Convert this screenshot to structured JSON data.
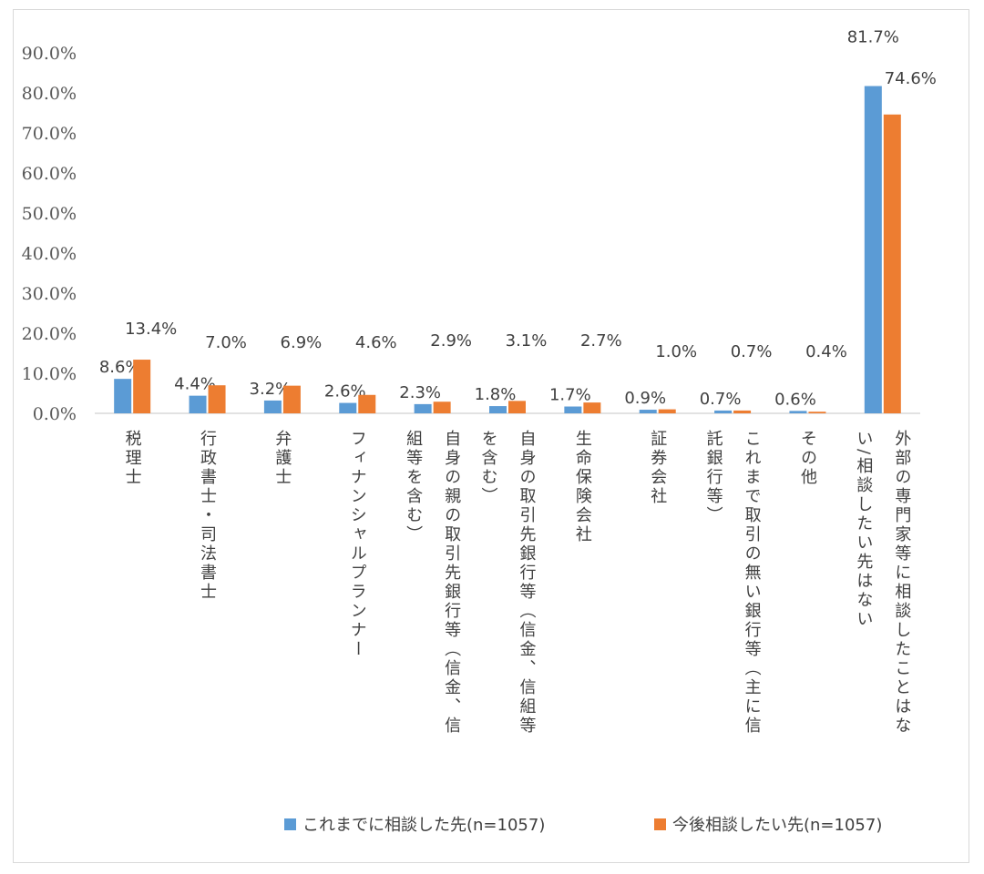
{
  "chart_data": {
    "type": "bar",
    "title": "",
    "xlabel": "",
    "ylabel": "",
    "ylim": [
      0,
      90
    ],
    "y_ticks": [
      "0.0%",
      "10.0%",
      "20.0%",
      "30.0%",
      "40.0%",
      "50.0%",
      "60.0%",
      "70.0%",
      "80.0%",
      "90.0%"
    ],
    "grid": false,
    "legend_position": "bottom",
    "categories": [
      {
        "lines": [
          "税理士"
        ]
      },
      {
        "lines": [
          "行政書士・司法書士"
        ]
      },
      {
        "lines": [
          "弁護士"
        ]
      },
      {
        "lines": [
          "フィナンシャルプランナー"
        ]
      },
      {
        "lines": [
          "自身の親の取引先銀行等（信金、信",
          "組等を含む）"
        ]
      },
      {
        "lines": [
          "自身の取引先銀行等（信金、信組等",
          "を含む）"
        ]
      },
      {
        "lines": [
          "生命保険会社"
        ]
      },
      {
        "lines": [
          "証券会社"
        ]
      },
      {
        "lines": [
          "これまで取引の無い銀行等（主に信",
          "託銀行等）"
        ]
      },
      {
        "lines": [
          "その他"
        ]
      },
      {
        "lines": [
          "外部の専門家等に相談したことはな",
          "い/相談したい先はない"
        ]
      }
    ],
    "series": [
      {
        "name": "これまでに相談した先(n=1057)",
        "color": "#5b9bd5",
        "values": [
          8.6,
          4.4,
          3.2,
          2.6,
          2.3,
          1.8,
          1.7,
          0.9,
          0.7,
          0.6,
          81.7
        ],
        "labels": [
          "8.6%",
          "4.4%",
          "3.2%",
          "2.6%",
          "2.3%",
          "1.8%",
          "1.7%",
          "0.9%",
          "0.7%",
          "0.6%",
          "81.7%"
        ]
      },
      {
        "name": "今後相談したい先(n=1057)",
        "color": "#ed7d31",
        "values": [
          13.4,
          7.0,
          6.9,
          4.6,
          2.9,
          3.1,
          2.7,
          1.0,
          0.7,
          0.4,
          74.6
        ],
        "labels": [
          "13.4%",
          "7.0%",
          "6.9%",
          "4.6%",
          "2.9%",
          "3.1%",
          "2.7%",
          "1.0%",
          "0.7%",
          "0.4%",
          "74.6%"
        ]
      }
    ]
  }
}
